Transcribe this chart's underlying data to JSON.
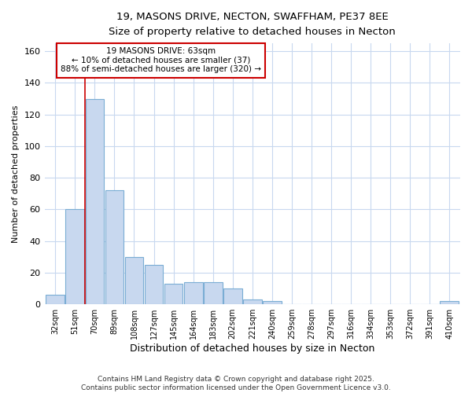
{
  "title_line1": "19, MASONS DRIVE, NECTON, SWAFFHAM, PE37 8EE",
  "title_line2": "Size of property relative to detached houses in Necton",
  "xlabel": "Distribution of detached houses by size in Necton",
  "ylabel": "Number of detached properties",
  "categories": [
    "32sqm",
    "51sqm",
    "70sqm",
    "89sqm",
    "108sqm",
    "127sqm",
    "145sqm",
    "164sqm",
    "183sqm",
    "202sqm",
    "221sqm",
    "240sqm",
    "259sqm",
    "278sqm",
    "297sqm",
    "316sqm",
    "334sqm",
    "353sqm",
    "372sqm",
    "391sqm",
    "410sqm"
  ],
  "values": [
    6,
    60,
    130,
    72,
    30,
    25,
    13,
    14,
    14,
    10,
    3,
    2,
    0,
    0,
    0,
    0,
    0,
    0,
    0,
    0,
    2
  ],
  "bar_color": "#c8d8ef",
  "bar_edge_color": "#7aadd4",
  "vline_x": 1.5,
  "vline_color": "#cc0000",
  "annotation_text": "19 MASONS DRIVE: 63sqm\n← 10% of detached houses are smaller (37)\n88% of semi-detached houses are larger (320) →",
  "annotation_box_color": "#ffffff",
  "annotation_box_edge": "#cc0000",
  "ylim": [
    0,
    165
  ],
  "yticks": [
    0,
    20,
    40,
    60,
    80,
    100,
    120,
    140,
    160
  ],
  "bg_color": "#ffffff",
  "grid_color": "#c8d8ef",
  "footer_line1": "Contains HM Land Registry data © Crown copyright and database right 2025.",
  "footer_line2": "Contains public sector information licensed under the Open Government Licence v3.0."
}
